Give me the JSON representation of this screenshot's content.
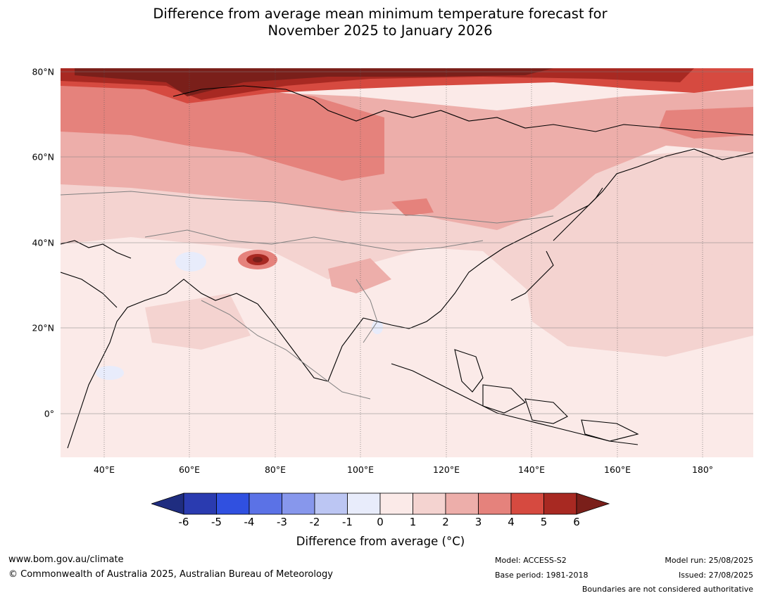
{
  "title": {
    "line1": "Difference from average mean minimum temperature forecast for",
    "line2": "November 2025 to January 2026"
  },
  "map": {
    "lat_labels": [
      "80°N",
      "60°N",
      "40°N",
      "20°N",
      "0°"
    ],
    "lon_labels": [
      "40°E",
      "60°E",
      "80°E",
      "100°E",
      "120°E",
      "140°E",
      "160°E",
      "180°"
    ]
  },
  "colorbar": {
    "ticks": [
      "-6",
      "-5",
      "-4",
      "-3",
      "-2",
      "-1",
      "0",
      "1",
      "2",
      "3",
      "4",
      "5",
      "6"
    ],
    "colors": [
      "#1f2d80",
      "#2a3bb0",
      "#3050e0",
      "#5b72e6",
      "#8797ec",
      "#bcc6f3",
      "#e8ecfb",
      "#fbeae8",
      "#f4d3d0",
      "#edaeaa",
      "#e5827c",
      "#d64a40",
      "#a82922",
      "#7a1f1a"
    ],
    "label": "Difference from average (°C)"
  },
  "footer": {
    "website": "www.bom.gov.au/climate",
    "copyright": "© Commonwealth of Australia 2025, Australian Bureau of Meteorology",
    "model": "Model: ACCESS-S2",
    "base_period": "Base period: 1981-2018",
    "model_run": "Model run: 25/08/2025",
    "issued": "Issued: 27/08/2025",
    "disclaimer": "Boundaries are not considered authoritative"
  }
}
